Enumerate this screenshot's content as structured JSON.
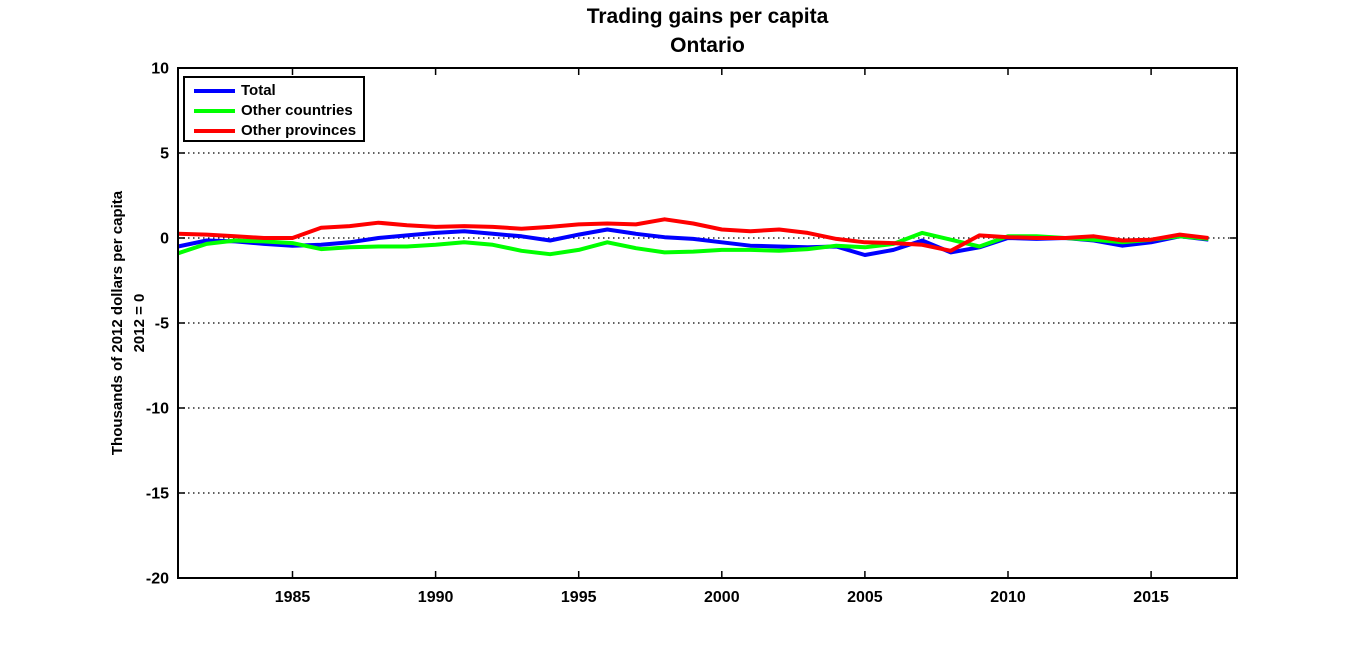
{
  "page": {
    "background": "#ffffff"
  },
  "chart_data": {
    "type": "line",
    "title": "Trading gains per capita",
    "subtitle": "Ontario",
    "xlabel": "",
    "ylabel_line1": "Thousands of 2012 dollars per capita",
    "ylabel_line2": "2012 = 0",
    "xlim": [
      1981,
      2018
    ],
    "ylim": [
      -20,
      10
    ],
    "xticks": [
      1985,
      1990,
      1995,
      2000,
      2005,
      2010,
      2015
    ],
    "yticks": [
      10,
      5,
      0,
      -5,
      -10,
      -15,
      -20
    ],
    "grid_y": [
      5,
      0,
      -5,
      -10,
      -15
    ],
    "grid_style": "dotted",
    "axis_color": "#000000",
    "legend_position": "top-left-inside",
    "x": [
      1981,
      1982,
      1983,
      1984,
      1985,
      1986,
      1987,
      1988,
      1989,
      1990,
      1991,
      1992,
      1993,
      1994,
      1995,
      1996,
      1997,
      1998,
      1999,
      2000,
      2001,
      2002,
      2003,
      2004,
      2005,
      2006,
      2007,
      2008,
      2009,
      2010,
      2011,
      2012,
      2013,
      2014,
      2015,
      2016,
      2017
    ],
    "series": [
      {
        "name": "Total",
        "color": "#0000ff",
        "values": [
          -0.5,
          -0.15,
          -0.2,
          -0.35,
          -0.45,
          -0.4,
          -0.25,
          0.0,
          0.15,
          0.3,
          0.4,
          0.25,
          0.1,
          -0.15,
          0.2,
          0.5,
          0.25,
          0.05,
          -0.05,
          -0.25,
          -0.45,
          -0.5,
          -0.55,
          -0.5,
          -1.0,
          -0.7,
          -0.15,
          -0.85,
          -0.55,
          0.0,
          -0.05,
          0.0,
          -0.15,
          -0.45,
          -0.25,
          0.1,
          -0.1
        ]
      },
      {
        "name": "Other countries",
        "color": "#00ff00",
        "values": [
          -0.9,
          -0.35,
          -0.15,
          -0.2,
          -0.3,
          -0.65,
          -0.55,
          -0.5,
          -0.5,
          -0.4,
          -0.25,
          -0.4,
          -0.75,
          -0.95,
          -0.7,
          -0.25,
          -0.6,
          -0.85,
          -0.8,
          -0.7,
          -0.7,
          -0.75,
          -0.65,
          -0.45,
          -0.55,
          -0.35,
          0.3,
          -0.1,
          -0.5,
          0.1,
          0.1,
          0.0,
          -0.1,
          -0.25,
          -0.1,
          0.1,
          -0.05
        ]
      },
      {
        "name": "Other provinces",
        "color": "#ff0000",
        "values": [
          0.25,
          0.2,
          0.1,
          0.0,
          0.0,
          0.6,
          0.7,
          0.9,
          0.75,
          0.65,
          0.7,
          0.65,
          0.55,
          0.65,
          0.8,
          0.85,
          0.8,
          1.1,
          0.85,
          0.5,
          0.4,
          0.5,
          0.3,
          -0.05,
          -0.25,
          -0.3,
          -0.4,
          -0.75,
          0.15,
          0.05,
          0.0,
          0.0,
          0.1,
          -0.15,
          -0.1,
          0.2,
          0.0
        ]
      }
    ]
  }
}
